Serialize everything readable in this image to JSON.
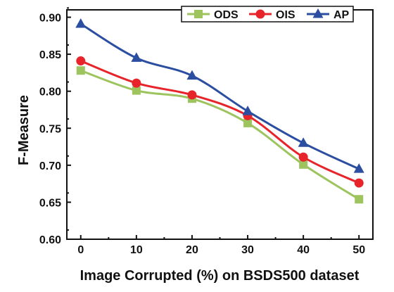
{
  "chart_data": {
    "type": "line",
    "title": "",
    "xlabel": "Image Corrupted (%) on BSDS500 dataset",
    "ylabel": "F-Measure",
    "x": [
      0,
      10,
      20,
      30,
      40,
      50
    ],
    "xticks": [
      "0",
      "10",
      "20",
      "30",
      "40",
      "50"
    ],
    "xlim": [
      -2.5,
      52.5
    ],
    "yticks": [
      "0.60",
      "0.65",
      "0.70",
      "0.75",
      "0.80",
      "0.85",
      "0.90"
    ],
    "ylim": [
      0.6,
      0.91
    ],
    "grid": false,
    "legend_position": "top-right",
    "series": [
      {
        "name": "ODS",
        "color": "#9dc45f",
        "marker": "square",
        "values": [
          0.828,
          0.801,
          0.79,
          0.757,
          0.701,
          0.654
        ]
      },
      {
        "name": "OIS",
        "color": "#e8242b",
        "marker": "circle",
        "values": [
          0.841,
          0.811,
          0.795,
          0.767,
          0.711,
          0.676
        ]
      },
      {
        "name": "AP",
        "color": "#2b4ea0",
        "marker": "triangle",
        "values": [
          0.891,
          0.845,
          0.821,
          0.773,
          0.73,
          0.695
        ]
      }
    ]
  }
}
